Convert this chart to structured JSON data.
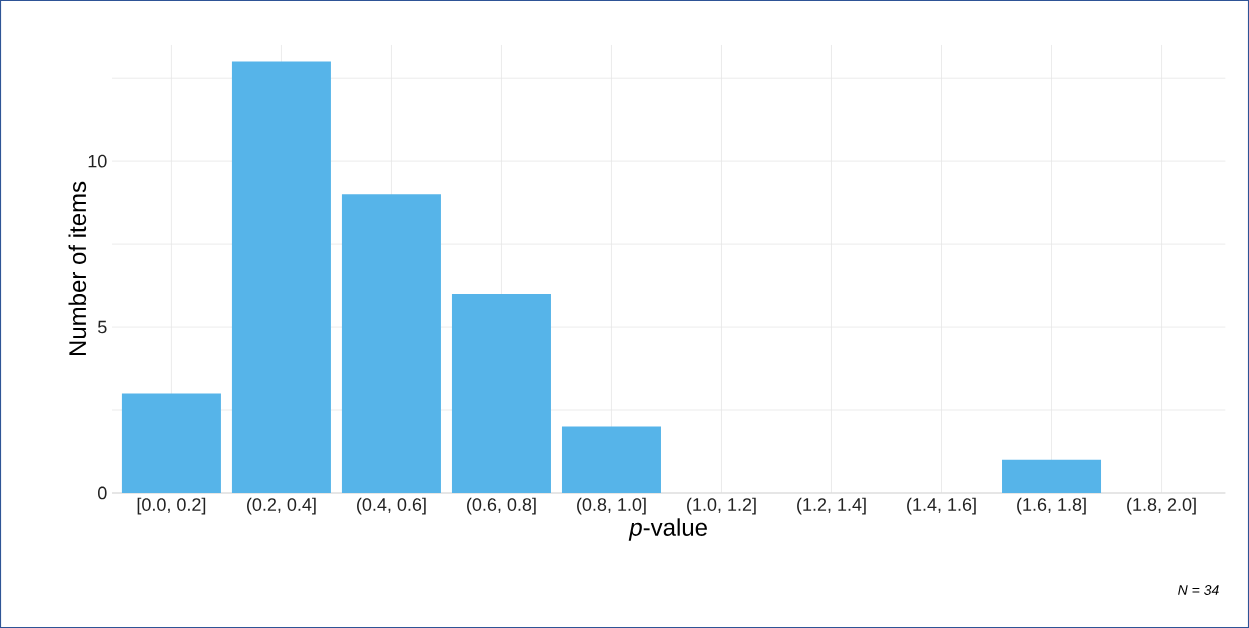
{
  "chart_data": {
    "type": "bar",
    "xlabel": "*p*-value",
    "ylabel": "Number of items",
    "categories": [
      "[0.0, 0.2]",
      "(0.2, 0.4]",
      "(0.4, 0.6]",
      "(0.6, 0.8]",
      "(0.8, 1.0]",
      "(1.0, 1.2]",
      "(1.2, 1.4]",
      "(1.4, 1.6]",
      "(1.6, 1.8]",
      "(1.8, 2.0]"
    ],
    "values": [
      3,
      13,
      9,
      6,
      2,
      0,
      0,
      0,
      1,
      0
    ],
    "color": "#56b4e9",
    "ylim": [
      0,
      13.5
    ],
    "yticks": [
      0,
      {
        "value": 2.5,
        "label": null
      },
      5,
      {
        "value": 7.5,
        "label": null
      },
      10,
      {
        "value": 12.5,
        "label": null
      }
    ],
    "grid": true,
    "annotations": [
      "N = 34"
    ]
  }
}
